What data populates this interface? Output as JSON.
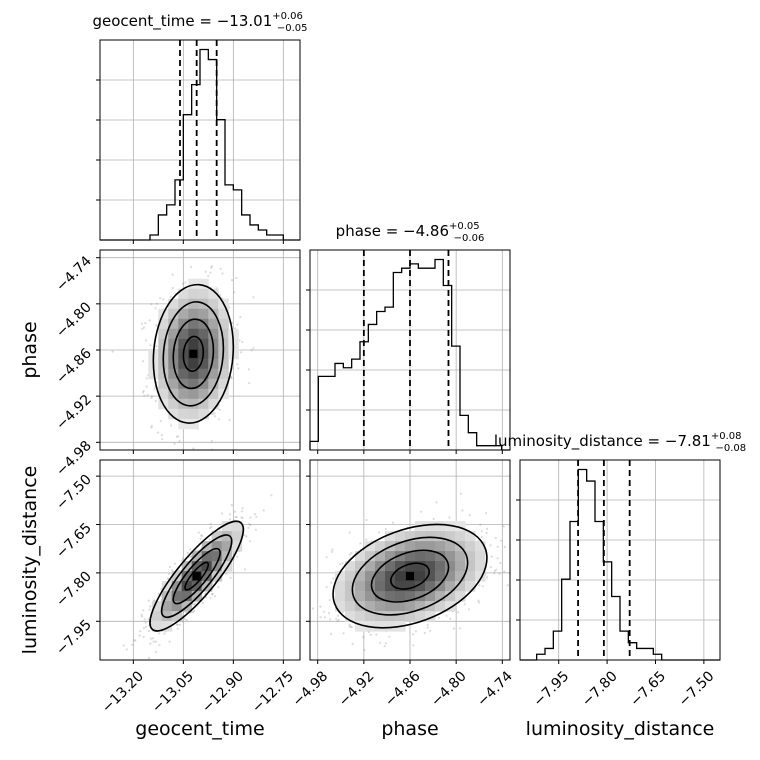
{
  "chart_data": {
    "type": "corner",
    "parameters": [
      {
        "key": "geocent_time",
        "label": "geocent_time",
        "title": "geocent_time = −13.01",
        "sup": "+0.06",
        "sub": "−0.05",
        "range": [
          -13.3,
          -12.7
        ],
        "ticks": [
          -13.2,
          -13.05,
          -12.9,
          -12.75
        ],
        "tick_labels": [
          "−13.20",
          "−13.05",
          "−12.90",
          "−12.75"
        ],
        "median": -13.01,
        "quantiles": [
          -13.06,
          -13.01,
          -12.95
        ],
        "hist": [
          0,
          0,
          0,
          0,
          0,
          0,
          1,
          5,
          7,
          12,
          25,
          31,
          38,
          36,
          24,
          11,
          10,
          5,
          3,
          2,
          1,
          1,
          0,
          0
        ]
      },
      {
        "key": "phase",
        "label": "phase",
        "title": "phase = −4.86",
        "sup": "+0.05",
        "sub": "−0.06",
        "range": [
          -4.99,
          -4.73
        ],
        "ticks": [
          -4.98,
          -4.92,
          -4.86,
          -4.8,
          -4.74
        ],
        "tick_labels": [
          "−4.98",
          "−4.92",
          "−4.86",
          "−4.80",
          "−4.74"
        ],
        "median": -4.86,
        "quantiles": [
          -4.92,
          -4.86,
          -4.81
        ],
        "hist": [
          2,
          17,
          17,
          20,
          19,
          21,
          25,
          29,
          32,
          33,
          41,
          42,
          43,
          42,
          42,
          44,
          38,
          24,
          8,
          4,
          1,
          1,
          1,
          0
        ]
      },
      {
        "key": "luminosity_distance",
        "label": "luminosity_distance",
        "title": "luminosity_distance = −7.81",
        "sup": "+0.08",
        "sub": "−0.08",
        "range": [
          -8.07,
          -7.45
        ],
        "ticks": [
          -7.95,
          -7.8,
          -7.65,
          -7.5
        ],
        "tick_labels": [
          "−7.95",
          "−7.80",
          "−7.65",
          "−7.50"
        ],
        "median": -7.81,
        "quantiles": [
          -7.89,
          -7.81,
          -7.73
        ],
        "hist": [
          0,
          0,
          1,
          2,
          5,
          14,
          24,
          33,
          31,
          24,
          17,
          11,
          5,
          3,
          2,
          2,
          1,
          0,
          0,
          0,
          0,
          0,
          0,
          0
        ]
      }
    ],
    "pairs": [
      {
        "x": 0,
        "y": 1,
        "center": [
          -13.02,
          -4.865
        ],
        "spread": [
          0.06,
          0.045
        ],
        "rho": 0.1
      },
      {
        "x": 0,
        "y": 2,
        "center": [
          -13.01,
          -7.81
        ],
        "spread": [
          0.07,
          0.085
        ],
        "rho": 0.85
      },
      {
        "x": 1,
        "y": 2,
        "center": [
          -4.86,
          -7.81
        ],
        "spread": [
          0.05,
          0.08
        ],
        "rho": 0.35
      }
    ],
    "grid": true,
    "colors": {
      "line": "#000000",
      "grid": "#b0b0b0",
      "points": "#7f7f7f",
      "fill": "#808080"
    }
  }
}
